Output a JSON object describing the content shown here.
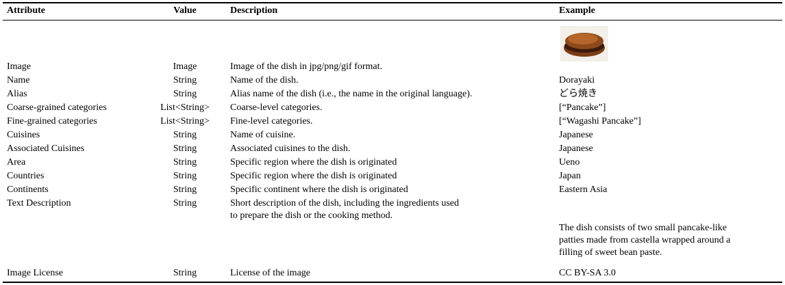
{
  "table": {
    "header": [
      "Attribute",
      "Value",
      "Description",
      "Example"
    ],
    "rows": [
      {
        "attribute": "Image",
        "value": "Image",
        "description": [
          "Image of the dish in jpg/png/gif format."
        ]
      },
      {
        "attribute": "Name",
        "value": "String",
        "description": [
          "Name of the dish."
        ],
        "example": [
          "Dorayaki"
        ]
      },
      {
        "attribute": "Alias",
        "value": "String",
        "description": [
          "Alias name of the dish (i.e., the name in the original language)."
        ],
        "example": [
          "どら焼き"
        ]
      },
      {
        "attribute": "Coarse-grained categories",
        "value": "List<String>",
        "description": [
          "Coarse-level categories."
        ],
        "example": [
          "[“Pancake”]"
        ]
      },
      {
        "attribute": "Fine-grained categories",
        "value": "List<String>",
        "description": [
          "Fine-level categories."
        ],
        "example": [
          "[“Wagashi Pancake”]"
        ]
      },
      {
        "attribute": "Cuisines",
        "value": "String",
        "description": [
          "Name of cuisine."
        ],
        "example": [
          "Japanese"
        ]
      },
      {
        "attribute": "Associated Cuisines",
        "value": "String",
        "description": [
          "Associated cuisines to the dish."
        ],
        "example": [
          "Japanese"
        ]
      },
      {
        "attribute": "Area",
        "value": "String",
        "description": [
          "Specific region where the dish is originated"
        ],
        "example": [
          "Ueno"
        ]
      },
      {
        "attribute": "Countries",
        "value": "String",
        "description": [
          "Specific region where the dish is originated"
        ],
        "example": [
          "Japan"
        ]
      },
      {
        "attribute": "Continents",
        "value": "String",
        "description": [
          "Specific continent where the dish is originated"
        ],
        "example": [
          "Eastern Asia"
        ]
      },
      {
        "attribute": "Text Description",
        "value": "String",
        "description": [
          "Short description of the dish, including the ingredients used",
          "to prepare the dish or the cooking method."
        ],
        "example": [
          "The dish consists of two small pancake-like",
          "patties made from castella wrapped around a",
          "filling of sweet bean paste."
        ]
      },
      {
        "attribute": "Image License",
        "value": "String",
        "description": [
          "License of the image"
        ],
        "example": [
          "CC BY-SA 3.0"
        ]
      }
    ]
  }
}
